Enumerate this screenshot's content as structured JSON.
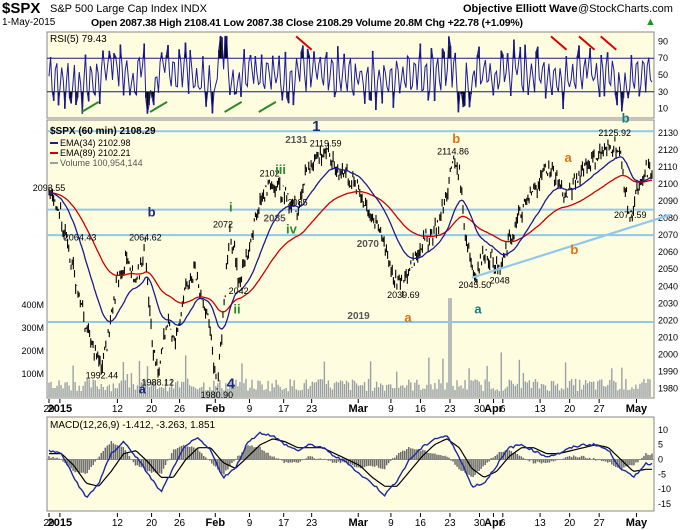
{
  "header": {
    "symbol": "$SPX",
    "name": "S&P 500 Large Cap Index INDX",
    "date": "1-May-2015",
    "ohlc": "Open 2087.38  High 2108.41  Low 2087.38  Close 2108.29  Volume 20.8M  Chg +22.78 (+1.09%)",
    "chg_arrow": "▲",
    "credit": "Objective Elliott Wave",
    "watermark": "@StockCharts.com"
  },
  "colors": {
    "panel_bg": "#fffde0",
    "ema34": "#1c1c8c",
    "ema89": "#cc0000",
    "rsi_line": "#1a1aa0",
    "hline": "#8fc8ec",
    "wave_teal": "#1a7a80",
    "wave_orange": "#e07010",
    "wave_navy": "#1a2a80",
    "wave_green": "#2a8a2a"
  },
  "chart_data": [
    {
      "type": "line",
      "title": "RSI(5) 79.43",
      "ylim": [
        0,
        100
      ],
      "ticks": [
        "90",
        "70",
        "50",
        "30",
        "10"
      ],
      "tick_values": [
        90,
        70,
        50,
        30,
        10
      ],
      "levels": [
        70,
        30
      ],
      "shading": "above 70 and below 30 shaded black"
    },
    {
      "type": "line",
      "title": "$SPX (60 min) 2108.29",
      "legend": [
        "EMA(34) 2102.98",
        "EMA(89) 2102.21",
        "Volume 100,954,144"
      ],
      "ylim": [
        1975,
        2137
      ],
      "ticks": [
        "2130",
        "2120",
        "2110",
        "2100",
        "2090",
        "2080",
        "2070",
        "2060",
        "2050",
        "2040",
        "2030",
        "2020",
        "2010",
        "2000",
        "1990",
        "1980"
      ],
      "tick_values": [
        2130,
        2120,
        2110,
        2100,
        2090,
        2080,
        2070,
        2060,
        2050,
        2040,
        2030,
        2020,
        2010,
        2000,
        1990,
        1980
      ],
      "volume_ticks": [
        "400M",
        "300M",
        "200M",
        "100M"
      ],
      "volume_tick_values": [
        400,
        300,
        200,
        100
      ],
      "volume_ylim": [
        0,
        1200
      ],
      "horizontal_levels": [
        {
          "label": "2131",
          "value": 2131
        },
        {
          "label": "2085",
          "value": 2085
        },
        {
          "label": "2070",
          "value": 2070
        },
        {
          "label": "2019",
          "value": 2019
        }
      ],
      "price_labels": [
        {
          "text": "2093.55",
          "x": 0.0,
          "y": 2093.55
        },
        {
          "text": "2064.43",
          "x": 1.0,
          "y": 2064.43
        },
        {
          "text": "1992.44",
          "x": 1.7,
          "y": 1992.44
        },
        {
          "text": "2064.62",
          "x": 3.1,
          "y": 2064.62
        },
        {
          "text": "1988.12",
          "x": 3.5,
          "y": 1988.12
        },
        {
          "text": "2072",
          "x": 5.6,
          "y": 2072
        },
        {
          "text": "2042",
          "x": 6.1,
          "y": 2042
        },
        {
          "text": "1980.90",
          "x": 5.4,
          "y": 1980.9
        },
        {
          "text": "2102",
          "x": 7.1,
          "y": 2102
        },
        {
          "text": "2085",
          "x": 8.0,
          "y": 2085
        },
        {
          "text": "2119.59",
          "x": 8.9,
          "y": 2119.59
        },
        {
          "text": "2039.69",
          "x": 11.4,
          "y": 2039.69
        },
        {
          "text": "2114.86",
          "x": 13.0,
          "y": 2114.86
        },
        {
          "text": "2045.50",
          "x": 13.7,
          "y": 2045.5
        },
        {
          "text": "2048",
          "x": 14.5,
          "y": 2048
        },
        {
          "text": "2125.92",
          "x": 18.2,
          "y": 2125.92
        },
        {
          "text": "2077.59",
          "x": 18.7,
          "y": 2077.59
        }
      ],
      "wave_labels": [
        {
          "text": "1",
          "x": 8.6,
          "y": 2131,
          "color": "wave_navy"
        },
        {
          "text": "b",
          "x": 3.3,
          "y": 2081,
          "color": "wave_navy"
        },
        {
          "text": "a",
          "x": 3.0,
          "y": 1977,
          "color": "wave_navy"
        },
        {
          "text": "4",
          "x": 5.85,
          "y": 1980,
          "color": "wave_navy"
        },
        {
          "text": "i",
          "x": 5.85,
          "y": 2084,
          "color": "wave_green"
        },
        {
          "text": "ii",
          "x": 6.05,
          "y": 2024,
          "color": "wave_green"
        },
        {
          "text": "iii",
          "x": 7.45,
          "y": 2106,
          "color": "wave_green"
        },
        {
          "text": "iv",
          "x": 7.8,
          "y": 2071,
          "color": "wave_green"
        },
        {
          "text": "a",
          "x": 11.55,
          "y": 2019,
          "color": "wave_orange"
        },
        {
          "text": "b",
          "x": 13.1,
          "y": 2124,
          "color": "wave_orange"
        },
        {
          "text": "a",
          "x": 13.8,
          "y": 2024,
          "color": "wave_teal"
        },
        {
          "text": "a",
          "x": 16.7,
          "y": 2113,
          "color": "wave_orange"
        },
        {
          "text": "b",
          "x": 16.9,
          "y": 2059,
          "color": "wave_orange"
        },
        {
          "text": "b",
          "x": 18.55,
          "y": 2136,
          "color": "wave_teal"
        }
      ],
      "trendline": {
        "x": [
          13.6,
          20.0
        ],
        "y": [
          2045,
          2082
        ]
      },
      "price_anchors": {
        "x": [
          0.0,
          0.3,
          0.6,
          0.9,
          1.2,
          1.5,
          1.7,
          1.9,
          2.2,
          2.5,
          2.8,
          3.1,
          3.3,
          3.5,
          3.8,
          4.1,
          4.4,
          4.7,
          5.0,
          5.2,
          5.4,
          5.6,
          5.8,
          6.0,
          6.1,
          6.4,
          6.7,
          7.0,
          7.1,
          7.4,
          7.7,
          8.0,
          8.3,
          8.6,
          8.9,
          9.2,
          9.6,
          10.0,
          10.4,
          10.8,
          11.1,
          11.4,
          11.7,
          12.0,
          12.3,
          12.6,
          12.8,
          13.0,
          13.2,
          13.4,
          13.7,
          14.0,
          14.3,
          14.5,
          14.8,
          15.1,
          15.4,
          15.7,
          16.0,
          16.3,
          16.6,
          16.9,
          17.2,
          17.5,
          17.8,
          18.0,
          18.2,
          18.4,
          18.6,
          18.7,
          18.9,
          19.1,
          19.2
        ],
        "y": [
          2093,
          2088,
          2064,
          2040,
          2015,
          2000,
          1992,
          2010,
          2045,
          2055,
          2040,
          2064,
          2010,
          1988,
          2020,
          2010,
          2040,
          2050,
          2030,
          2010,
          1981,
          2020,
          2072,
          2060,
          2042,
          2060,
          2085,
          2095,
          2102,
          2098,
          2090,
          2085,
          2110,
          2115,
          2119,
          2110,
          2105,
          2095,
          2080,
          2065,
          2045,
          2040,
          2055,
          2065,
          2070,
          2080,
          2095,
          2114,
          2108,
          2070,
          2045,
          2060,
          2055,
          2048,
          2065,
          2080,
          2090,
          2100,
          2110,
          2105,
          2092,
          2100,
          2110,
          2115,
          2118,
          2120,
          2125,
          2115,
          2090,
          2078,
          2095,
          2100,
          2108
        ]
      },
      "x_ticks": [
        {
          "label": "29",
          "x": 0.0
        },
        {
          "label": "2015",
          "x": 0.35
        },
        {
          "label": "12",
          "x": 2.2
        },
        {
          "label": "20",
          "x": 3.3
        },
        {
          "label": "26",
          "x": 4.2
        },
        {
          "label": "Feb",
          "x": 5.35
        },
        {
          "label": "9",
          "x": 6.45
        },
        {
          "label": "17",
          "x": 7.55
        },
        {
          "label": "23",
          "x": 8.45
        },
        {
          "label": "Mar",
          "x": 9.95
        },
        {
          "label": "9",
          "x": 11.0
        },
        {
          "label": "16",
          "x": 11.95
        },
        {
          "label": "23",
          "x": 12.9
        },
        {
          "label": "30",
          "x": 13.85
        },
        {
          "label": "Apr",
          "x": 14.3
        },
        {
          "label": "6",
          "x": 14.6
        },
        {
          "label": "13",
          "x": 15.8
        },
        {
          "label": "20",
          "x": 16.75
        },
        {
          "label": "27",
          "x": 17.7
        },
        {
          "label": "May",
          "x": 18.9
        }
      ]
    },
    {
      "type": "line",
      "title": "MACD(12,26,9) -1.412, -3.263, 1.851",
      "ylim": [
        -17,
        14
      ],
      "ticks": [
        "10",
        "5",
        "0",
        "-5",
        "-10",
        "-15"
      ],
      "tick_values": [
        10,
        5,
        0,
        -5,
        -10,
        -15
      ],
      "series": [],
      "macd_anchors": {
        "x": [
          0.0,
          0.4,
          0.8,
          1.2,
          1.6,
          2.0,
          2.4,
          2.8,
          3.2,
          3.6,
          4.0,
          4.4,
          4.8,
          5.2,
          5.6,
          6.0,
          6.4,
          6.8,
          7.2,
          7.6,
          8.0,
          8.4,
          8.8,
          9.2,
          9.6,
          10.0,
          10.4,
          10.8,
          11.2,
          11.6,
          12.0,
          12.4,
          12.8,
          13.2,
          13.6,
          14.0,
          14.4,
          14.8,
          15.2,
          15.6,
          16.0,
          16.4,
          16.8,
          17.2,
          17.6,
          18.0,
          18.4,
          18.8,
          19.2
        ],
        "macd": [
          3,
          2,
          -6,
          -13,
          -8,
          2,
          6,
          1,
          -5,
          -11,
          -3,
          5,
          7,
          3,
          -6,
          -3,
          6,
          9,
          8,
          5,
          3,
          5,
          4,
          1,
          -1,
          -5,
          -8,
          -12,
          -7,
          0,
          4,
          7,
          8,
          1,
          -9,
          -8,
          -2,
          4,
          5,
          3,
          1,
          2,
          4,
          5,
          5,
          3,
          -3,
          -6,
          -1.4
        ],
        "signal": [
          2,
          2,
          -2,
          -8,
          -9,
          -4,
          2,
          3,
          -1,
          -6,
          -6,
          0,
          4,
          4,
          -1,
          -3,
          1,
          5,
          7,
          6,
          4,
          4,
          4,
          2,
          0,
          -2,
          -6,
          -9,
          -9,
          -4,
          1,
          5,
          7,
          4,
          -3,
          -6,
          -4,
          1,
          4,
          4,
          2,
          2,
          3,
          4,
          5,
          4,
          0,
          -4,
          -3.3
        ]
      }
    }
  ]
}
